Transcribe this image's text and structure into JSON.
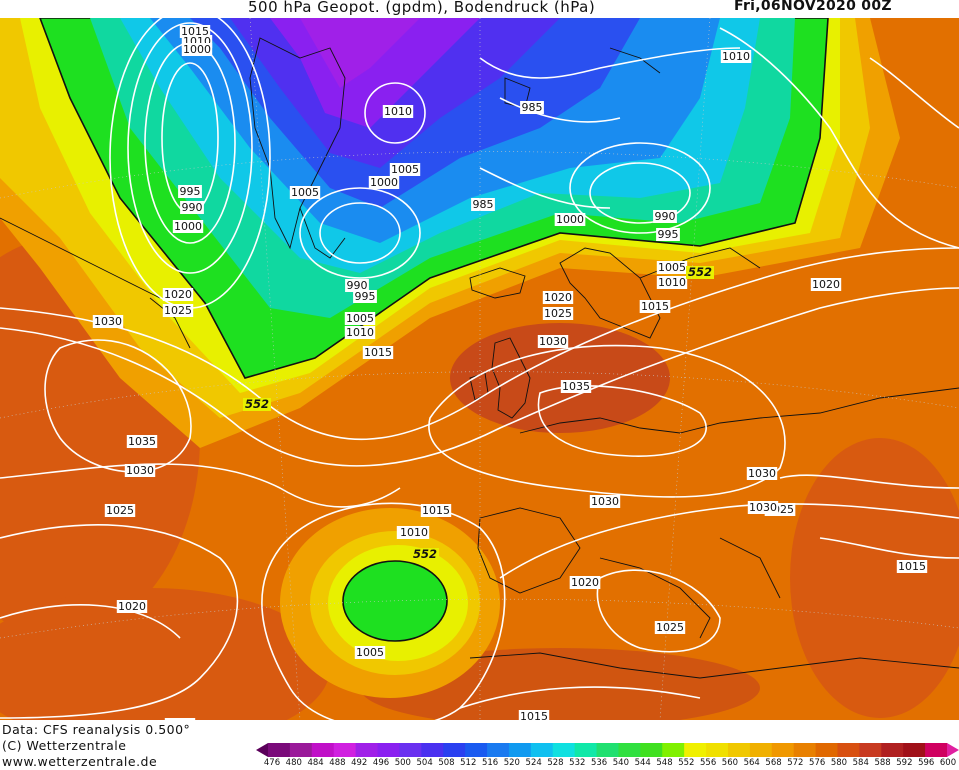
{
  "header": {
    "title": "500 hPa Geopot. (gpdm), Bodendruck (hPa)",
    "datetime": "Fri,06NOV2020 00Z"
  },
  "footer": {
    "data_source": "Data: CFS reanalysis 0.500°",
    "copyright": "(C) Wetterzentrale",
    "url": "www.wetterzentrale.de"
  },
  "colorbar": {
    "ticks": [
      "476",
      "480",
      "484",
      "488",
      "492",
      "496",
      "500",
      "504",
      "508",
      "512",
      "516",
      "520",
      "524",
      "528",
      "532",
      "536",
      "540",
      "544",
      "548",
      "552",
      "556",
      "560",
      "564",
      "568",
      "572",
      "576",
      "580",
      "584",
      "588",
      "592",
      "596",
      "600"
    ],
    "colors": [
      "#5a005a",
      "#7a0a7a",
      "#9a1a9a",
      "#c010c8",
      "#d020e0",
      "#a020e8",
      "#8a20f0",
      "#6a30f0",
      "#4a30f0",
      "#2a40f0",
      "#1a5af0",
      "#1a7af0",
      "#109af0",
      "#10c0f0",
      "#10e0e0",
      "#10e8a8",
      "#20e070",
      "#30e040",
      "#40e020",
      "#80f000",
      "#f0f000",
      "#f0e000",
      "#f0c800",
      "#f0b000",
      "#f09800",
      "#e88000",
      "#e06800",
      "#d85010",
      "#c83a20",
      "#b02020",
      "#a01018",
      "#d00060",
      "#e020a0"
    ]
  },
  "map": {
    "pressure_labels": [
      "1015",
      "1010",
      "1000",
      "995",
      "990",
      "1000",
      "1010",
      "985",
      "1005",
      "1005",
      "1000",
      "985",
      "990",
      "995",
      "1000",
      "1005",
      "1010",
      "1015",
      "1020",
      "1025",
      "1030",
      "1035",
      "1030",
      "1025",
      "1020",
      "1015",
      "1010",
      "1005",
      "1015",
      "1020",
      "1025",
      "1030",
      "1035",
      "1030",
      "1025",
      "1020",
      "1015",
      "1000",
      "990",
      "995",
      "1005",
      "1010",
      "1015",
      "1020",
      "1030",
      "1025",
      "1015",
      "1020",
      "1025",
      "1015",
      "1010",
      "1010",
      "1030"
    ],
    "geopotential_labels": [
      "552",
      "552",
      "552"
    ]
  }
}
